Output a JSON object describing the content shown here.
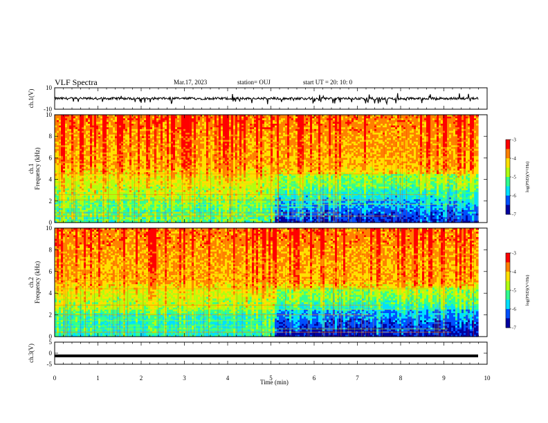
{
  "header": {
    "title": "VLF Spectra",
    "date": "Mar.17, 2023",
    "station": "station= OUJ",
    "start": "start  UT =   20: 10: 0"
  },
  "colors": {
    "map": [
      "#0000a0",
      "#0050ff",
      "#00e0ff",
      "#30ff90",
      "#b0ff10",
      "#ffe000",
      "#ff8000",
      "#ff0000"
    ],
    "axis": "#000000"
  },
  "chart_data": [
    {
      "type": "line",
      "name": "ch1-waveform",
      "ylabel": "ch.1(V)",
      "ylim": [
        -10,
        10
      ],
      "yticks": [
        "10",
        "-10"
      ],
      "xlim": [
        0,
        10
      ],
      "approx_level": 0,
      "note_values": "noisy trace near 0 V with spikes to about -4 V"
    },
    {
      "type": "heatmap",
      "name": "ch1-spectrogram",
      "ylabel": "ch.1",
      "ylabel2": "Frequency (kHz)",
      "ylim": [
        0,
        10
      ],
      "yticks": [
        "0",
        "2",
        "4",
        "6",
        "8",
        "10"
      ],
      "xlim": [
        0,
        9.8
      ],
      "colorbar": {
        "label": "log(PSD)(V²/Hz)",
        "range": [
          -7,
          -3
        ],
        "ticks": [
          "-3",
          "-4",
          "-5",
          "-6",
          "-7"
        ]
      }
    },
    {
      "type": "heatmap",
      "name": "ch2-spectrogram",
      "ylabel": "ch.2",
      "ylabel2": "Frequency (kHz)",
      "ylim": [
        0,
        10
      ],
      "yticks": [
        "0",
        "2",
        "4",
        "6",
        "8",
        "10"
      ],
      "xlim": [
        0,
        9.8
      ],
      "colorbar": {
        "label": "log(PSD)(V²/Hz)",
        "range": [
          -7,
          -3
        ],
        "ticks": [
          "-3",
          "-4",
          "-5",
          "-6",
          "-7"
        ]
      }
    },
    {
      "type": "line",
      "name": "ch3-waveform",
      "ylabel": "ch.3(V)",
      "ylim": [
        -5,
        5
      ],
      "yticks": [
        "5",
        "0",
        "-5"
      ],
      "xlim": [
        0,
        10
      ],
      "approx_level": -1.2
    }
  ],
  "xaxis": {
    "label": "Time (min)",
    "ticks": [
      "0",
      "1",
      "2",
      "3",
      "4",
      "5",
      "6",
      "7",
      "8",
      "9",
      "10"
    ]
  }
}
